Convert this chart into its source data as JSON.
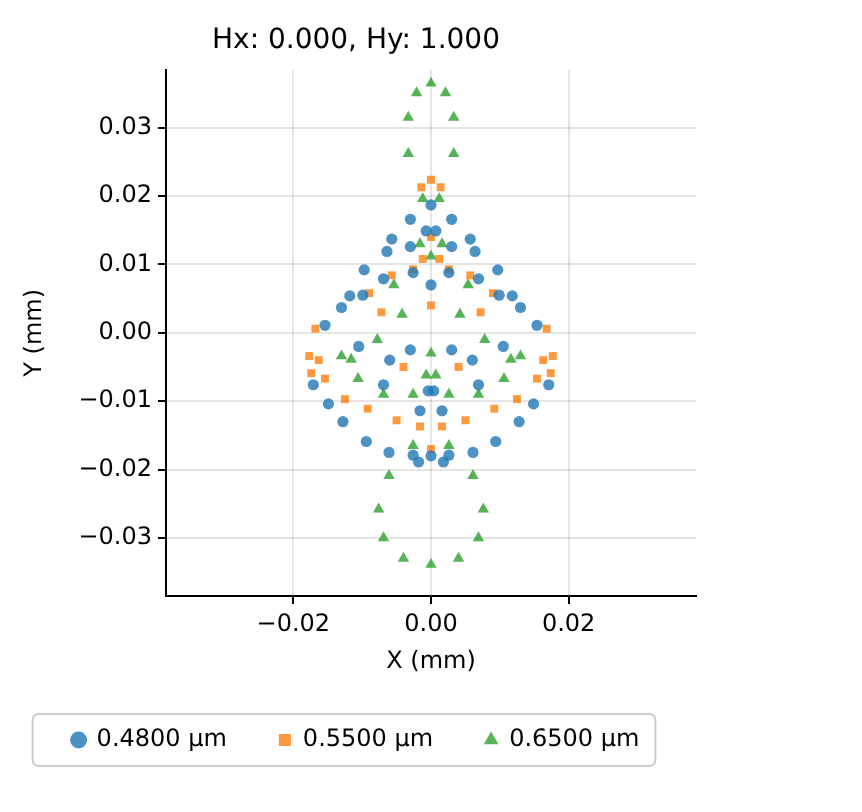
{
  "chart_data": {
    "type": "scatter",
    "title": "Hx: 0.000, Hy: 1.000",
    "xlabel": "X (mm)",
    "ylabel": "Y (mm)",
    "xlim": [
      -0.0385,
      0.0385
    ],
    "ylim": [
      -0.0385,
      0.0385
    ],
    "xticks": [
      {
        "value": -0.02,
        "label": "−0.02"
      },
      {
        "value": 0,
        "label": "0.00"
      },
      {
        "value": 0.02,
        "label": "0.02"
      }
    ],
    "yticks": [
      {
        "value": -0.03,
        "label": "−0.03"
      },
      {
        "value": -0.02,
        "label": "−0.02"
      },
      {
        "value": -0.01,
        "label": "−0.01"
      },
      {
        "value": 0,
        "label": "0.00"
      },
      {
        "value": 0.01,
        "label": "0.01"
      },
      {
        "value": 0.02,
        "label": "0.02"
      },
      {
        "value": 0.03,
        "label": "0.03"
      }
    ],
    "grid": true,
    "legend": "bottom",
    "series": [
      {
        "name": "0.4800 µm",
        "color": "#1f77b4",
        "marker": "circle",
        "x": [
          0,
          0,
          0,
          -0.003,
          -0.0057,
          -0.0064,
          -0.0097,
          -0.0118,
          -0.013,
          -0.0154,
          -0.0171,
          -0.0149,
          -0.0128,
          -0.0094,
          -0.0061,
          -0.0026,
          -0.0018,
          -0.0016,
          -0.0004,
          -0.0069,
          -0.003,
          -0.0007,
          -0.003,
          -0.0026,
          -0.0069,
          -0.0099,
          -0.0105,
          -0.006,
          0.003,
          0.0057,
          0.0064,
          0.0097,
          0.0118,
          0.013,
          0.0154,
          0.0171,
          0.0149,
          0.0128,
          0.0094,
          0.0061,
          0.0026,
          0.0018,
          0.0016,
          0.0004,
          0.0069,
          0.003,
          0.0007,
          0.003,
          0.0026,
          0.0069,
          0.0099,
          0.0105,
          0.006
        ],
        "values": [
          0.0187,
          -0.018,
          0.007,
          0.0166,
          0.0137,
          0.0119,
          0.0092,
          0.0054,
          0.0037,
          0.0011,
          -0.0076,
          -0.0104,
          -0.013,
          -0.0159,
          -0.0175,
          -0.0179,
          -0.0189,
          -0.0114,
          -0.0085,
          -0.0076,
          -0.0025,
          0.0149,
          0.0126,
          0.0088,
          0.0079,
          0.0055,
          -0.002,
          -0.004,
          0.0166,
          0.0137,
          0.0119,
          0.0092,
          0.0054,
          0.0037,
          0.0011,
          -0.0076,
          -0.0104,
          -0.013,
          -0.0159,
          -0.0175,
          -0.0179,
          -0.0189,
          -0.0114,
          -0.0085,
          -0.0076,
          -0.0025,
          0.0149,
          0.0126,
          0.0088,
          0.0079,
          0.0055,
          -0.002,
          -0.004
        ]
      },
      {
        "name": "0.5500 µm",
        "color": "#ff7f0e",
        "marker": "square",
        "x": [
          0,
          0,
          0,
          0,
          -0.0014,
          -0.0177,
          -0.0163,
          -0.0174,
          -0.0154,
          -0.0125,
          -0.0092,
          -0.005,
          -0.0016,
          -0.0057,
          -0.0026,
          -0.0012,
          -0.009,
          -0.0072,
          -0.0168,
          -0.004,
          0.0014,
          0.0177,
          0.0163,
          0.0174,
          0.0154,
          0.0125,
          0.0092,
          0.005,
          0.0016,
          0.0057,
          0.0026,
          0.0012,
          0.009,
          0.0072,
          0.0168,
          0.004
        ],
        "values": [
          0.0224,
          0.014,
          -0.017,
          0.004,
          0.0213,
          -0.0034,
          -0.004,
          -0.0059,
          -0.0067,
          -0.0097,
          -0.0111,
          -0.0128,
          -0.0137,
          0.0084,
          0.0093,
          0.0108,
          0.0058,
          0.003,
          0.0006,
          -0.005,
          0.0213,
          -0.0034,
          -0.004,
          -0.0059,
          -0.0067,
          -0.0097,
          -0.0111,
          -0.0128,
          -0.0137,
          0.0084,
          0.0093,
          0.0108,
          0.0058,
          0.003,
          0.0006,
          -0.005
        ]
      },
      {
        "name": "0.6500 µm",
        "color": "#2ca02c",
        "marker": "triangle",
        "x": [
          0,
          0,
          0,
          0,
          -0.0021,
          -0.0033,
          -0.0033,
          -0.0012,
          -0.0061,
          -0.0076,
          -0.0069,
          -0.004,
          -0.0054,
          -0.0016,
          -0.0042,
          -0.0116,
          -0.0106,
          -0.0069,
          -0.0026,
          -0.0007,
          -0.0026,
          -0.0078,
          -0.013,
          0.0021,
          0.0033,
          0.0033,
          0.0012,
          0.0061,
          0.0076,
          0.0069,
          0.004,
          0.0054,
          0.0016,
          0.0042,
          0.0116,
          0.0106,
          0.0069,
          0.0026,
          0.0007,
          0.0026,
          0.0078,
          0.013
        ],
        "values": [
          0.0365,
          -0.0339,
          0.0112,
          -0.003,
          0.0351,
          0.0315,
          0.0262,
          0.0196,
          -0.0209,
          -0.0258,
          -0.03,
          -0.033,
          0.007,
          0.013,
          0.0027,
          -0.0039,
          -0.0067,
          -0.009,
          -0.009,
          -0.0062,
          -0.0165,
          -0.001,
          -0.0034,
          0.0351,
          0.0315,
          0.0262,
          0.0196,
          -0.0209,
          -0.0258,
          -0.03,
          -0.033,
          0.007,
          0.013,
          0.0027,
          -0.0039,
          -0.0067,
          -0.009,
          -0.009,
          -0.0062,
          -0.0165,
          -0.001,
          -0.0034
        ]
      }
    ]
  }
}
